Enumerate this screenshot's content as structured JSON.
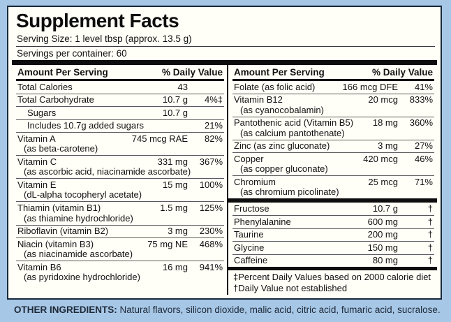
{
  "title": "Supplement Facts",
  "serving_size": "Serving Size: 1 level tbsp (approx. 13.5 g)",
  "servings_per_container": "Servings per container: 60",
  "table": {
    "amount_header": "Amount Per Serving",
    "dv_header": "% Daily Value"
  },
  "left_rows": [
    {
      "name": "Total Calories",
      "amount": "43",
      "dv": ""
    },
    {
      "name": "Total Carbohydrate",
      "amount": "10.7 g",
      "dv": "4%‡"
    },
    {
      "name": "Sugars",
      "amount": "10.7 g",
      "dv": ""
    },
    {
      "name": "Includes 10.7g added sugars",
      "amount": "",
      "dv": "21%"
    },
    {
      "name": "Vitamin A",
      "sub": "(as beta-carotene)",
      "amount": "745 mcg RAE",
      "dv": "82%"
    },
    {
      "name": "Vitamin C",
      "sub": "(as ascorbic acid, niacinamide ascorbate)",
      "amount": "331 mg",
      "dv": "367%"
    },
    {
      "name": "Vitamin E",
      "sub": "(dL-alpha tocopheryl acetate)",
      "amount": "15 mg",
      "dv": "100%"
    },
    {
      "name": "Thiamin (vitamin B1)",
      "sub": "(as thiamine hydrochloride)",
      "amount": "1.5 mg",
      "dv": "125%"
    },
    {
      "name": "Riboflavin (vitamin B2)",
      "amount": "3 mg",
      "dv": "230%"
    },
    {
      "name": "Niacin (vitamin B3)",
      "sub": "(as niacinamide ascorbate)",
      "amount": "75 mg NE",
      "dv": "468%"
    },
    {
      "name": "Vitamin B6",
      "sub": "(as pyridoxine hydrochloride)",
      "amount": "16 mg",
      "dv": "941%"
    }
  ],
  "right_rows": [
    {
      "name": "Folate (as folic acid)",
      "amount": "166 mcg DFE",
      "dv": "41%"
    },
    {
      "name": "Vitamin B12",
      "sub": "(as cyanocobalamin)",
      "amount": "20 mcg",
      "dv": "833%"
    },
    {
      "name": "Pantothenic acid (Vitamin B5)",
      "sub": "(as calcium pantothenate)",
      "amount": "18 mg",
      "dv": "360%"
    },
    {
      "name": "Zinc (as zinc gluconate)",
      "amount": "3 mg",
      "dv": "27%"
    },
    {
      "name": "Copper",
      "sub": "(as copper gluconate)",
      "amount": "420 mcg",
      "dv": "46%"
    },
    {
      "name": "Chromium",
      "sub": "(as chromium picolinate)",
      "amount": "25 mcg",
      "dv": "71%"
    },
    {
      "name": "Fructose",
      "amount": "10.7 g",
      "dv": "†"
    },
    {
      "name": "Phenylalanine",
      "amount": "600 mg",
      "dv": "†"
    },
    {
      "name": "Taurine",
      "amount": "200 mg",
      "dv": "†"
    },
    {
      "name": "Glycine",
      "amount": "150 mg",
      "dv": "†"
    },
    {
      "name": "Caffeine",
      "amount": "80 mg",
      "dv": "†"
    }
  ],
  "footnotes": {
    "percent": "‡Percent Daily Values based on 2000 calorie diet",
    "dagger": "†Daily Value not established"
  },
  "other_ingredients": {
    "label": "OTHER INGREDIENTS:",
    "items": "Natural flavors, silicon dioxide, malic acid, citric acid, fumaric acid, sucralose."
  },
  "colors": {
    "background": "#a7c7e7",
    "panel": "#fffef7",
    "border": "#17293a",
    "bars": "#0d0d0d",
    "text": "#111111"
  }
}
